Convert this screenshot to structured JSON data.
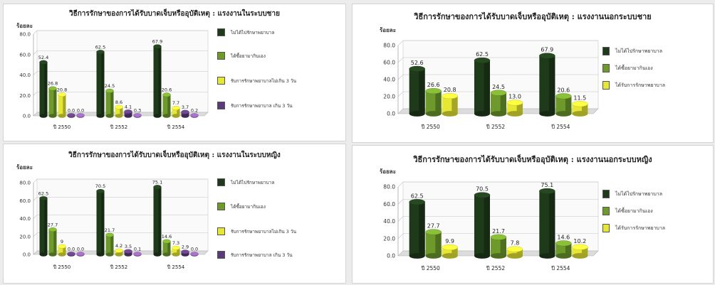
{
  "chart_data": [
    {
      "type": "bar",
      "title": "วิธีการรักษาของการได้รับบาดเจ็บหรืออุบัติเหตุ : แรงงานในระบบชาย",
      "ylabel": "ร้อยละ",
      "ylim": [
        0,
        80
      ],
      "yticks": [
        "0.0",
        "20.0",
        "40.0",
        "60.0",
        "80.0"
      ],
      "categories": [
        "ปี 2550",
        "ปี 2552",
        "ปี 2554"
      ],
      "grid": true,
      "legend": "right",
      "series": [
        {
          "name": "ไม่ได้ไปรักษาพยาบาล",
          "values": [
            52.4,
            62.5,
            67.9
          ],
          "labels": [
            "52.4",
            "62.5",
            "67.9"
          ]
        },
        {
          "name": "ได้ซื้อยามากินเอง",
          "values": [
            26.8,
            24.5,
            20.6
          ],
          "labels": [
            "26.8",
            "24.5",
            "20.6"
          ]
        },
        {
          "name": "รับการรักษาพยาบาลไม่เกิน 3 วัน",
          "values": [
            20.8,
            8.6,
            7.7
          ],
          "labels": [
            "20.8",
            "8.6",
            "7.7"
          ]
        },
        {
          "name": "รับการรักษาพยาบาล เกิน 3 วัน",
          "values": [
            0.0,
            4.1,
            3.7
          ],
          "labels": [
            "0.0",
            "4.1",
            "3.7"
          ]
        },
        {
          "values": [
            0.0,
            0.3,
            0.2
          ],
          "labels": [
            "0.0",
            "0.3",
            "0.2"
          ]
        }
      ]
    },
    {
      "type": "bar",
      "title": "วิธีการรักษาของการได้รับบาดเจ็บหรืออุบัติเหตุ : แรงงานนอกระบบชาย",
      "ylabel": "ร้อยละ",
      "ylim": [
        0,
        80
      ],
      "yticks": [
        "0.0",
        "20.0",
        "40.0",
        "60.0",
        "80.0"
      ],
      "categories": [
        "ปี 2550",
        "ปี 2552",
        "ปี 2554"
      ],
      "grid": true,
      "legend": "right",
      "series": [
        {
          "name": "ไม่ได้ไปรักษาพยาบาล",
          "values": [
            52.6,
            62.5,
            67.9
          ],
          "labels": [
            "52.6",
            "62.5",
            "67.9"
          ]
        },
        {
          "name": "ได้ซื้อยามากินเอง",
          "values": [
            26.6,
            24.5,
            20.6
          ],
          "labels": [
            "26.6",
            "24.5",
            "20.6"
          ]
        },
        {
          "name": "ได้รับการรักษาพยาบาล",
          "values": [
            20.8,
            13.0,
            11.5
          ],
          "labels": [
            "20.8",
            "13.0",
            "11.5"
          ]
        }
      ]
    },
    {
      "type": "bar",
      "title": "วิธีการรักษาของการได้รับบาดเจ็บหรืออุบัติเหตุ : แรงงานในระบบหญิง",
      "ylabel": "ร้อยละ",
      "ylim": [
        0,
        80
      ],
      "yticks": [
        "0.0",
        "20.0",
        "40.0",
        "60.0",
        "80.0"
      ],
      "categories": [
        "ปี 2550",
        "ปี 2552",
        "ปี 2554"
      ],
      "grid": true,
      "legend": "right",
      "series": [
        {
          "name": "ไม่ได้ไปรักษาพยาบาล",
          "values": [
            62.5,
            70.5,
            75.1
          ],
          "labels": [
            "62.5",
            "70.5",
            "75.1"
          ]
        },
        {
          "name": "ได้ซื้อยามากินเอง",
          "values": [
            27.7,
            21.7,
            14.6
          ],
          "labels": [
            "27.7",
            "21.7",
            "14.6"
          ]
        },
        {
          "name": "รับการรักษาพยาบาลไม่เกิน 3 วัน",
          "values": [
            9.0,
            4.2,
            7.3
          ],
          "labels": [
            "9",
            "4.2",
            "7.3"
          ]
        },
        {
          "name": "รับการรักษาพยาบาล เกิน 3 วัน",
          "values": [
            0.0,
            3.5,
            2.9
          ],
          "labels": [
            "0.0",
            "3.5",
            "2.9"
          ]
        },
        {
          "values": [
            0.0,
            0.1,
            0.0
          ],
          "labels": [
            "0.0",
            "0.1",
            "0.0"
          ]
        }
      ]
    },
    {
      "type": "bar",
      "title": "วิธีการรักษาของการได้รับบาดเจ็บหรืออุบัติเหตุ : แรงงานนอกระบบหญิง",
      "ylabel": "ร้อยละ",
      "ylim": [
        0,
        80
      ],
      "yticks": [
        "0.0",
        "20.0",
        "40.0",
        "60.0",
        "80.0"
      ],
      "categories": [
        "ปี 2550",
        "ปี 2552",
        "ปี 2554"
      ],
      "grid": true,
      "legend": "right",
      "series": [
        {
          "name": "ไม่ได้ไปรักษาพยาบาล",
          "values": [
            62.5,
            70.5,
            75.1
          ],
          "labels": [
            "62.5",
            "70.5",
            "75.1"
          ]
        },
        {
          "name": "ได้ซื้อยามากินเอง",
          "values": [
            27.7,
            21.7,
            14.6
          ],
          "labels": [
            "27.7",
            "21.7",
            "14.6"
          ]
        },
        {
          "name": "ได้รับการรักษาพยาบาล",
          "values": [
            9.9,
            7.8,
            10.2
          ],
          "labels": [
            "9.9",
            "7.8",
            "10.2"
          ]
        }
      ]
    }
  ],
  "colors": [
    "#1f3a1a",
    "#6e9a2c",
    "#e6e635",
    "#5b3a78",
    "#8a5aa8"
  ]
}
